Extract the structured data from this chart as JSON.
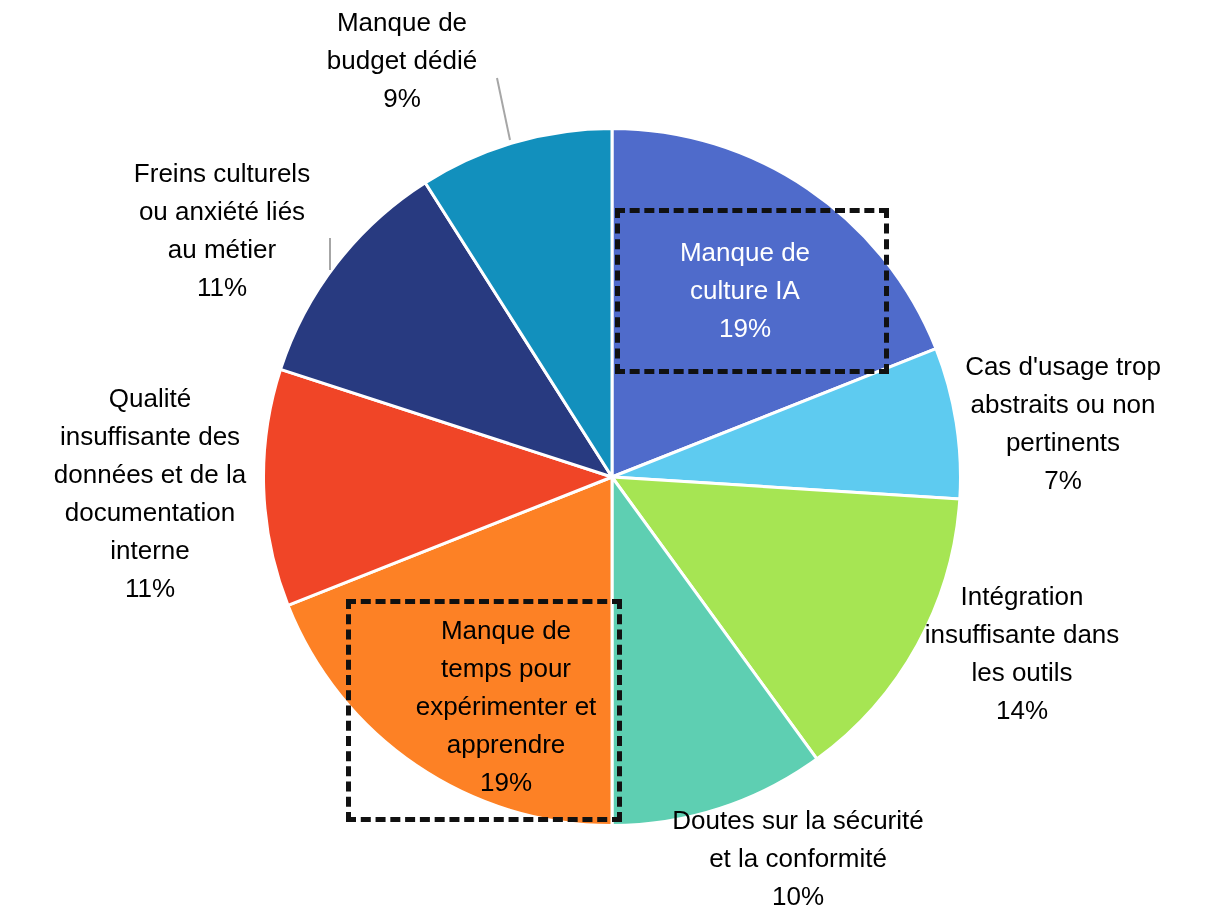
{
  "chart_data": {
    "type": "pie",
    "categories": [
      "Manque de culture IA",
      "Cas d'usage trop abstraits ou non pertinents",
      "Intégration insuffisante dans les outils",
      "Doutes sur la sécurité et la conformité",
      "Manque de temps pour expérimenter et apprendre",
      "Qualité insuffisante des données et de la documentation interne",
      "Freins culturels ou anxiété liés au métier",
      "Manque de budget dédié"
    ],
    "values": [
      19,
      7,
      14,
      10,
      19,
      11,
      11,
      9
    ],
    "colors": [
      "#4f6bcb",
      "#5ecbf0",
      "#a6e553",
      "#5ecfb2",
      "#fd8125",
      "#f04527",
      "#283a80",
      "#1290bd"
    ],
    "value_labels": [
      "19%",
      "7%",
      "14%",
      "10%",
      "19%",
      "11%",
      "11%",
      "9%"
    ],
    "legend": false
  }
}
